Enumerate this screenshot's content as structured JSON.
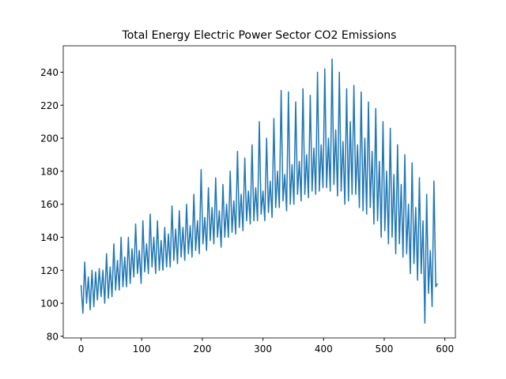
{
  "chart_data": {
    "type": "line",
    "title": "Total Energy Electric Power Sector CO2 Emissions",
    "x": [
      0,
      3,
      6,
      9,
      12,
      15,
      18,
      21,
      24,
      27,
      30,
      33,
      36,
      39,
      42,
      45,
      48,
      51,
      54,
      57,
      60,
      63,
      66,
      69,
      72,
      75,
      78,
      81,
      84,
      87,
      90,
      93,
      96,
      99,
      102,
      105,
      108,
      111,
      114,
      117,
      120,
      123,
      126,
      129,
      132,
      135,
      138,
      141,
      144,
      147,
      150,
      153,
      156,
      159,
      162,
      165,
      168,
      171,
      174,
      177,
      180,
      183,
      186,
      189,
      192,
      195,
      198,
      201,
      204,
      207,
      210,
      213,
      216,
      219,
      222,
      225,
      228,
      231,
      234,
      237,
      240,
      243,
      246,
      249,
      252,
      255,
      258,
      261,
      264,
      267,
      270,
      273,
      276,
      279,
      282,
      285,
      288,
      291,
      294,
      297,
      300,
      303,
      306,
      309,
      312,
      315,
      318,
      321,
      324,
      327,
      330,
      333,
      336,
      339,
      342,
      345,
      348,
      351,
      354,
      357,
      360,
      363,
      366,
      369,
      372,
      375,
      378,
      381,
      384,
      387,
      390,
      393,
      396,
      399,
      402,
      405,
      408,
      411,
      414,
      417,
      420,
      423,
      426,
      429,
      432,
      435,
      438,
      441,
      444,
      447,
      450,
      453,
      456,
      459,
      462,
      465,
      468,
      471,
      474,
      477,
      480,
      483,
      486,
      489,
      492,
      495,
      498,
      501,
      504,
      507,
      510,
      513,
      516,
      519,
      522,
      525,
      528,
      531,
      534,
      537,
      540,
      543,
      546,
      549,
      552,
      555,
      558,
      561,
      564,
      567,
      570,
      573,
      576,
      579,
      582,
      585,
      588
    ],
    "series": [
      {
        "color": "#1f77b4",
        "values": [
          111,
          94,
          125,
          100,
          116,
          96,
          120,
          98,
          119,
          102,
          121,
          104,
          120,
          100,
          130,
          103,
          122,
          104,
          136,
          108,
          126,
          108,
          140,
          110,
          128,
          110,
          140,
          112,
          133,
          116,
          148,
          118,
          132,
          112,
          150,
          119,
          136,
          118,
          154,
          122,
          140,
          118,
          150,
          120,
          138,
          120,
          146,
          122,
          142,
          122,
          159,
          126,
          145,
          124,
          156,
          128,
          146,
          126,
          160,
          130,
          147,
          128,
          166,
          132,
          150,
          130,
          181,
          136,
          152,
          132,
          170,
          138,
          158,
          136,
          176,
          140,
          156,
          134,
          172,
          140,
          160,
          140,
          180,
          143,
          162,
          142,
          192,
          146,
          166,
          144,
          188,
          150,
          168,
          148,
          196,
          150,
          170,
          150,
          210,
          154,
          168,
          150,
          200,
          155,
          174,
          152,
          212,
          158,
          180,
          158,
          229,
          162,
          178,
          156,
          228,
          160,
          184,
          160,
          222,
          166,
          186,
          162,
          230,
          166,
          190,
          164,
          226,
          168,
          194,
          166,
          240,
          168,
          196,
          170,
          242,
          170,
          200,
          168,
          248,
          172,
          205,
          165,
          240,
          168,
          198,
          160,
          230,
          162,
          210,
          166,
          232,
          166,
          196,
          158,
          228,
          156,
          200,
          154,
          222,
          158,
          192,
          148,
          218,
          150,
          186,
          140,
          210,
          144,
          180,
          136,
          206,
          140,
          178,
          130,
          196,
          136,
          172,
          128,
          190,
          130,
          160,
          118,
          185,
          124,
          158,
          114,
          176,
          118,
          150,
          88,
          166,
          106,
          132,
          98,
          174,
          110,
          112
        ]
      }
    ],
    "xlim": [
      -29.4,
      617.4
    ],
    "ylim": [
      79,
      256
    ],
    "xticks": [
      0,
      100,
      200,
      300,
      400,
      500,
      600
    ],
    "yticks": [
      80,
      100,
      120,
      140,
      160,
      180,
      200,
      220,
      240
    ]
  }
}
